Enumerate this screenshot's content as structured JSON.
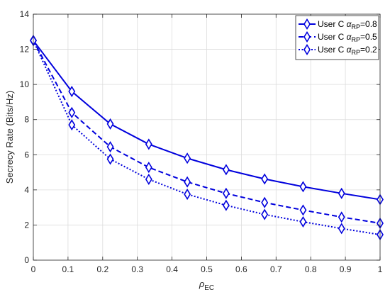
{
  "chart_data": {
    "type": "line",
    "xlabel": "ρ",
    "xlabel_sub": "EC",
    "ylabel": "Secrecy Rate (Bits/Hz)",
    "xlim": [
      0,
      1
    ],
    "ylim": [
      0,
      14
    ],
    "xticks": [
      "0",
      "0.1",
      "0.2",
      "0.3",
      "0.4",
      "0.5",
      "0.6",
      "0.7",
      "0.8",
      "0.9",
      "1"
    ],
    "yticks": [
      "0",
      "2",
      "4",
      "6",
      "8",
      "10",
      "12",
      "14"
    ],
    "grid": true,
    "legend_position": "top-right",
    "color": "#0000dd",
    "x": [
      0,
      0.111,
      0.222,
      0.333,
      0.444,
      0.556,
      0.667,
      0.778,
      0.889,
      1.0
    ],
    "series": [
      {
        "name": "User C α_RP=0.8",
        "legend_prefix": "User C ",
        "legend_symbol": "α",
        "legend_sub": "RP",
        "legend_suffix": "=0.8",
        "line_style": "solid",
        "values": [
          12.5,
          9.6,
          7.75,
          6.6,
          5.8,
          5.15,
          4.62,
          4.18,
          3.8,
          3.45
        ]
      },
      {
        "name": "User C α_RP=0.5",
        "legend_prefix": "User C ",
        "legend_symbol": "α",
        "legend_sub": "RP",
        "legend_suffix": "=0.5",
        "line_style": "dashed",
        "values": [
          12.5,
          8.4,
          6.45,
          5.28,
          4.45,
          3.8,
          3.28,
          2.85,
          2.45,
          2.1
        ]
      },
      {
        "name": "User C α_RP=0.2",
        "legend_prefix": "User C ",
        "legend_symbol": "α",
        "legend_sub": "RP",
        "legend_suffix": "=0.2",
        "line_style": "dotted",
        "values": [
          12.5,
          7.7,
          5.75,
          4.6,
          3.75,
          3.12,
          2.6,
          2.18,
          1.8,
          1.45
        ]
      }
    ]
  }
}
